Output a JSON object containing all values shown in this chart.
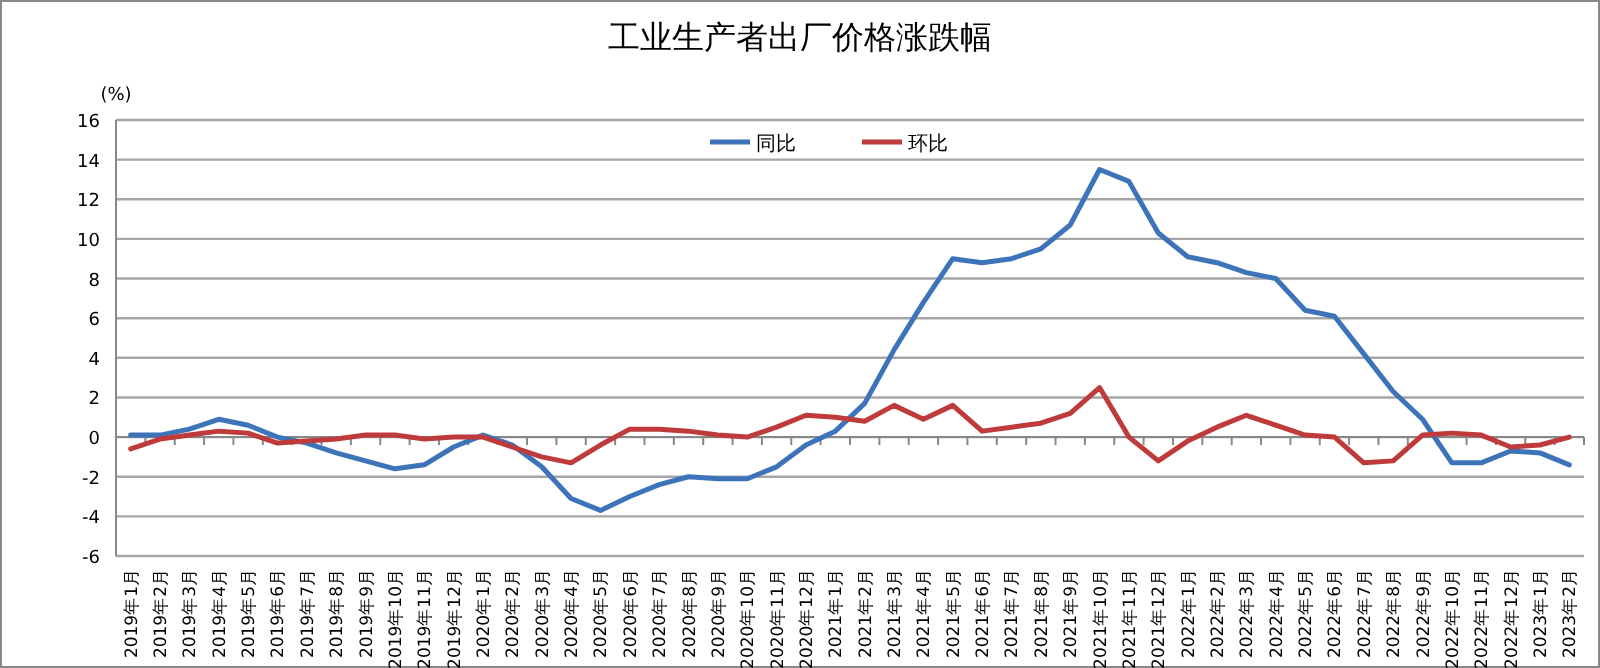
{
  "chart_data": {
    "type": "line",
    "title": "工业生产者出厂价格涨跌幅",
    "ylabel": "(%)",
    "categories": [
      "2019年1月",
      "2019年2月",
      "2019年3月",
      "2019年4月",
      "2019年5月",
      "2019年6月",
      "2019年7月",
      "2019年8月",
      "2019年9月",
      "2019年10月",
      "2019年11月",
      "2019年12月",
      "2020年1月",
      "2020年2月",
      "2020年3月",
      "2020年4月",
      "2020年5月",
      "2020年6月",
      "2020年7月",
      "2020年8月",
      "2020年9月",
      "2020年10月",
      "2020年11月",
      "2020年12月",
      "2021年1月",
      "2021年2月",
      "2021年3月",
      "2021年4月",
      "2021年5月",
      "2021年6月",
      "2021年7月",
      "2021年8月",
      "2021年9月",
      "2021年10月",
      "2021年11月",
      "2021年12月",
      "2022年1月",
      "2022年2月",
      "2022年3月",
      "2022年4月",
      "2022年5月",
      "2022年6月",
      "2022年7月",
      "2022年8月",
      "2022年9月",
      "2022年10月",
      "2022年11月",
      "2022年12月",
      "2023年1月",
      "2023年2月"
    ],
    "series": [
      {
        "name": "同比",
        "color": "#3d73b9",
        "values": [
          0.1,
          0.1,
          0.4,
          0.9,
          0.6,
          0.0,
          -0.3,
          -0.8,
          -1.2,
          -1.6,
          -1.4,
          -0.5,
          0.1,
          -0.4,
          -1.5,
          -3.1,
          -3.7,
          -3.0,
          -2.4,
          -2.0,
          -2.1,
          -2.1,
          -1.5,
          -0.4,
          0.3,
          1.7,
          4.4,
          6.8,
          9.0,
          8.8,
          9.0,
          9.5,
          10.7,
          13.5,
          12.9,
          10.3,
          9.1,
          8.8,
          8.3,
          8.0,
          6.4,
          6.1,
          4.2,
          2.3,
          0.9,
          -1.3,
          -1.3,
          -0.7,
          -0.8,
          -1.4
        ]
      },
      {
        "name": "环比",
        "color": "#bf3b3b",
        "values": [
          -0.6,
          -0.1,
          0.1,
          0.3,
          0.2,
          -0.3,
          -0.2,
          -0.1,
          0.1,
          0.1,
          -0.1,
          0.0,
          0.0,
          -0.5,
          -1.0,
          -1.3,
          -0.4,
          0.4,
          0.4,
          0.3,
          0.1,
          0.0,
          0.5,
          1.1,
          1.0,
          0.8,
          1.6,
          0.9,
          1.6,
          0.3,
          0.5,
          0.7,
          1.2,
          2.5,
          0.0,
          -1.2,
          -0.2,
          0.5,
          1.1,
          0.6,
          0.1,
          0.0,
          -1.3,
          -1.2,
          0.1,
          0.2,
          0.1,
          -0.5,
          -0.4,
          0.0
        ]
      }
    ],
    "ylim": [
      -6,
      16
    ],
    "yticks": [
      -6,
      -4,
      -2,
      0,
      2,
      4,
      6,
      8,
      10,
      12,
      14,
      16
    ],
    "grid": "y",
    "legend": "top",
    "line_style": "solid",
    "marker": "none"
  }
}
